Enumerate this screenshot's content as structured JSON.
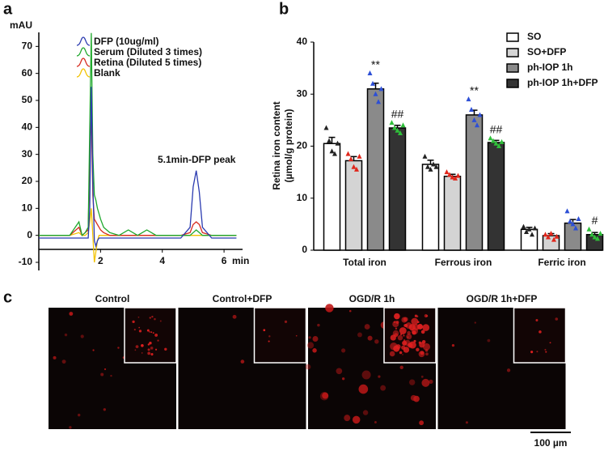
{
  "chart_data": [
    {
      "type": "line",
      "panel": "a",
      "ylabel": "mAU",
      "xlabel": "min",
      "annotation": "5.1min-DFP peak",
      "x": [
        0,
        0.5,
        1,
        1.3,
        1.4,
        1.5,
        1.6,
        1.65,
        1.7,
        1.75,
        1.8,
        1.85,
        1.9,
        1.95,
        2.0,
        2.1,
        2.3,
        2.6,
        2.9,
        3.2,
        3.5,
        3.8,
        4.2,
        4.6,
        4.9,
        5.0,
        5.1,
        5.2,
        5.3,
        5.6,
        6.0,
        6.4
      ],
      "series": [
        {
          "name": "DFP (10ug/ml)",
          "color": "#2b3bb0",
          "values": [
            -1,
            -1,
            -1,
            -1,
            -1,
            -1,
            -1,
            10,
            55,
            20,
            -2,
            -4,
            -2,
            -1,
            -1,
            -1,
            -1,
            -1,
            -1,
            -1,
            -1,
            -1,
            -1,
            -1,
            3,
            18,
            24,
            16,
            3,
            -1,
            -1,
            -1
          ]
        },
        {
          "name": "Serum (Diluted 3 times)",
          "color": "#1fa82c",
          "values": [
            0,
            0,
            0,
            5,
            0,
            1,
            3,
            40,
            75,
            30,
            15,
            13,
            10,
            8,
            6,
            3,
            1,
            0,
            2,
            0,
            2,
            0,
            0,
            0,
            0,
            1,
            2,
            1,
            0,
            0,
            0,
            0
          ]
        },
        {
          "name": "Retina (Diluted 5 times)",
          "color": "#d62a1e",
          "values": [
            0,
            0,
            0,
            3,
            0,
            1,
            2,
            30,
            45,
            15,
            6,
            5,
            4,
            3,
            2,
            1,
            0,
            0,
            0,
            0,
            0,
            0,
            0,
            0,
            1,
            4,
            5,
            4,
            1,
            0,
            0,
            0
          ]
        },
        {
          "name": "Blank",
          "color": "#f2c200",
          "values": [
            0,
            0,
            0,
            1,
            0,
            0,
            1,
            5,
            10,
            0,
            -10,
            -6,
            -2,
            0,
            0,
            0,
            0,
            0,
            0,
            0,
            0,
            0,
            0,
            0,
            0,
            0,
            0,
            0,
            0,
            0,
            0,
            0
          ]
        }
      ],
      "xlim": [
        0,
        6.6
      ],
      "ylim": [
        -13,
        77
      ],
      "xticks": [
        2,
        4,
        6
      ],
      "yticks": [
        -10,
        0,
        10,
        20,
        30,
        40,
        50,
        60,
        70
      ]
    },
    {
      "type": "bar",
      "panel": "b",
      "ylabel": [
        "Retina iron content",
        "(µmol/g protein)"
      ],
      "categories": [
        "Total iron",
        "Ferrous iron",
        "Ferric iron"
      ],
      "series": [
        {
          "name": "SO",
          "color": "#ffffff",
          "point_color": "#222222",
          "values": [
            20.5,
            16.5,
            4
          ],
          "errors": [
            1.2,
            0.8,
            0.4
          ],
          "points": [
            [
              23.5,
              21,
              19,
              18.5,
              20.5
            ],
            [
              18,
              16,
              15.5,
              16.5,
              16
            ],
            [
              4.5,
              3.5,
              4,
              3,
              4.2
            ]
          ]
        },
        {
          "name": "SO+DFP",
          "color": "#d4d4d4",
          "point_color": "#e0261b",
          "values": [
            17.2,
            14.2,
            2.8
          ],
          "errors": [
            0.8,
            0.4,
            0.4
          ],
          "points": [
            [
              18.5,
              17.5,
              16,
              15.5,
              18
            ],
            [
              15,
              14.5,
              14,
              13.8,
              14.3
            ],
            [
              3,
              2.5,
              3.2,
              2,
              2.6
            ]
          ]
        },
        {
          "name": "ph-IOP 1h",
          "color": "#8a8a8a",
          "point_color": "#2d4fd6",
          "values": [
            31,
            26,
            5.2
          ],
          "errors": [
            1.1,
            0.9,
            0.7
          ],
          "points": [
            [
              34,
              32,
              30,
              28.5,
              31
            ],
            [
              29,
              27,
              25,
              24,
              26
            ],
            [
              7.5,
              5.5,
              5,
              4.2,
              6
            ]
          ],
          "significance": [
            "**",
            "**",
            null
          ]
        },
        {
          "name": "ph-IOP 1h+DFP",
          "color": "#333333",
          "point_color": "#2fbf3a",
          "values": [
            23.5,
            20.7,
            3
          ],
          "errors": [
            0.5,
            0.4,
            0.4
          ],
          "points": [
            [
              24.5,
              23.5,
              23,
              22.5,
              24
            ],
            [
              21.5,
              21,
              20.5,
              20,
              20.8
            ],
            [
              4,
              3,
              2.5,
              2.2,
              3.2
            ]
          ],
          "significance": [
            "##",
            "##",
            "#"
          ]
        }
      ],
      "ylim": [
        0,
        40
      ],
      "yticks": [
        0,
        10,
        20,
        30,
        40
      ],
      "legend": "upper-right"
    }
  ],
  "images": {
    "panel": "c",
    "labels": [
      "Control",
      "Control+DFP",
      "OGD/R 1h",
      "OGD/R 1h+DFP"
    ],
    "scale_bar": "100 µm"
  }
}
